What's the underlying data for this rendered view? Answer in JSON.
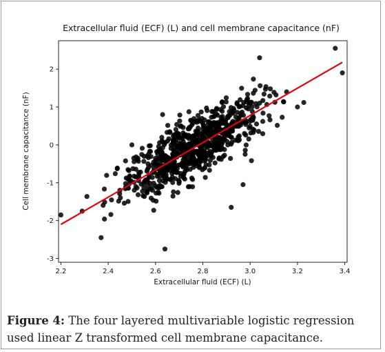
{
  "figure": {
    "label": "Figure 4:",
    "text": "The four layered multivariable logistic regression used linear Z transformed cell membrane capacitance."
  },
  "chart_data": {
    "type": "scatter",
    "title": "Extracellular fluid (ECF) (L) and cell membrane capacitance (nF)",
    "xlabel": "Extracellular fluid (ECF) (L)",
    "ylabel": "Cell membrane capacitance (nF)",
    "xlim": [
      2.19,
      3.41
    ],
    "ylim": [
      -3.1,
      2.75
    ],
    "xticks": [
      "2.2",
      "2.4",
      "2.6",
      "2.8",
      "3.0",
      "3.2",
      "3.4"
    ],
    "yticks": [
      "-3",
      "-2",
      "-1",
      "0",
      "1",
      "2"
    ],
    "grid": false,
    "n_points": 800,
    "regression_line": {
      "x": [
        2.2,
        3.39
      ],
      "y": [
        -2.1,
        2.18
      ],
      "color": "#e8000b"
    },
    "highlighted_points": [
      {
        "x": 2.37,
        "y": -2.45
      },
      {
        "x": 2.64,
        "y": -2.75
      },
      {
        "x": 2.92,
        "y": -1.65
      },
      {
        "x": 2.97,
        "y": -1.05
      },
      {
        "x": 3.36,
        "y": 2.55
      },
      {
        "x": 3.39,
        "y": 1.9
      },
      {
        "x": 3.04,
        "y": 2.3
      },
      {
        "x": 2.63,
        "y": 0.8
      },
      {
        "x": 2.5,
        "y": 0.0
      },
      {
        "x": 2.29,
        "y": -1.75
      },
      {
        "x": 2.2,
        "y": -1.85
      },
      {
        "x": 3.2,
        "y": 1.0
      }
    ],
    "point_color": "#000000"
  }
}
